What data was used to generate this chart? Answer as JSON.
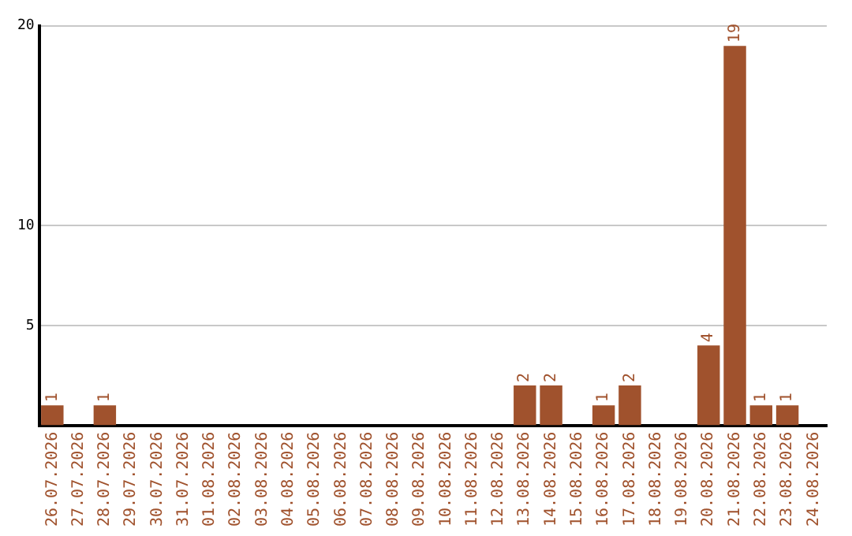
{
  "chart_data": {
    "type": "bar",
    "categories": [
      "26.07.2026",
      "27.07.2026",
      "28.07.2026",
      "29.07.2026",
      "30.07.2026",
      "31.07.2026",
      "01.08.2026",
      "02.08.2026",
      "03.08.2026",
      "04.08.2026",
      "05.08.2026",
      "06.08.2026",
      "07.08.2026",
      "08.08.2026",
      "09.08.2026",
      "10.08.2026",
      "11.08.2026",
      "12.08.2026",
      "13.08.2026",
      "14.08.2026",
      "15.08.2026",
      "16.08.2026",
      "17.08.2026",
      "18.08.2026",
      "19.08.2026",
      "20.08.2026",
      "21.08.2026",
      "22.08.2026",
      "23.08.2026",
      "24.08.2026"
    ],
    "values": [
      1,
      0,
      1,
      0,
      0,
      0,
      0,
      0,
      0,
      0,
      0,
      0,
      0,
      0,
      0,
      0,
      0,
      0,
      2,
      2,
      0,
      1,
      2,
      0,
      0,
      4,
      19,
      1,
      1,
      0
    ],
    "value_labels": [
      "1",
      null,
      "1",
      null,
      null,
      null,
      null,
      null,
      null,
      null,
      null,
      null,
      null,
      null,
      null,
      null,
      null,
      null,
      "2",
      "2",
      null,
      "1",
      "2",
      null,
      null,
      "4",
      "19",
      "1",
      "1",
      null
    ],
    "color": "#a0522d",
    "ylim": [
      0,
      20
    ],
    "yticks": [
      5,
      10,
      20
    ],
    "grid": "y",
    "legend": false
  }
}
